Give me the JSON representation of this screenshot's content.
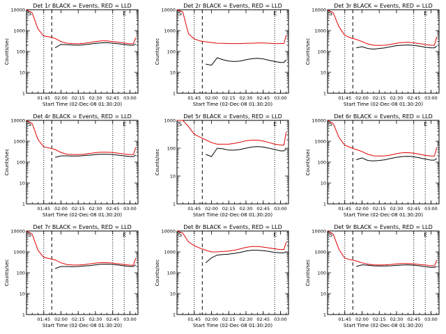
{
  "colors": {
    "events": "#000000",
    "lld": "#e00000",
    "background": "#ffffff"
  },
  "chart_data": [
    {
      "type": "line",
      "title": "Det 1r BLACK = Events, RED = LLD",
      "xlabel": "Start Time (02-Dec-08 01:30:20)",
      "ylabel": "Counts/sec",
      "yscale": "log",
      "ylim": [
        1,
        10000
      ],
      "xlim": [
        "01:30",
        "03:07"
      ],
      "x_ticks": [
        "01:45",
        "02:00",
        "02:15",
        "02:30",
        "02:45",
        "03:00"
      ],
      "y_ticks": [
        "1",
        "10",
        "100",
        "1000",
        "10000"
      ],
      "corner_label_left": "S",
      "corner_label_mid": "E",
      "vlines_dotted": [
        "01:45",
        "02:45",
        "02:55"
      ],
      "vline_dashed": "01:52",
      "event_start": "01:55",
      "x": [
        "01:30",
        "01:35",
        "01:40",
        "01:45",
        "01:50",
        "01:55",
        "02:00",
        "02:05",
        "02:10",
        "02:15",
        "02:20",
        "02:25",
        "02:30",
        "02:35",
        "02:40",
        "02:45",
        "02:50",
        "02:55",
        "03:00",
        "03:03",
        "03:05"
      ],
      "series": [
        {
          "name": "Events",
          "color": "#000000",
          "values": [
            null,
            null,
            null,
            null,
            null,
            150,
            220,
            210,
            205,
            200,
            210,
            225,
            245,
            260,
            265,
            250,
            235,
            215,
            200,
            200,
            230
          ]
        },
        {
          "name": "LLD",
          "color": "#e00000",
          "values": [
            10000,
            7000,
            1200,
            550,
            500,
            420,
            300,
            250,
            240,
            235,
            245,
            270,
            300,
            320,
            320,
            300,
            275,
            255,
            235,
            235,
            450
          ]
        }
      ]
    },
    {
      "type": "line",
      "title": "Det 2r BLACK = Events, RED = LLD",
      "xlabel": "Start Time (02-Dec-08 01:30:20)",
      "ylabel": "Counts/sec",
      "yscale": "log",
      "ylim": [
        1,
        10000
      ],
      "xlim": [
        "01:30",
        "03:07"
      ],
      "x_ticks": [
        "01:45",
        "02:00",
        "02:15",
        "02:30",
        "02:45",
        "03:00"
      ],
      "y_ticks": [
        "1",
        "10",
        "100",
        "1000",
        "10000"
      ],
      "corner_label_left": "S",
      "corner_label_mid": "E",
      "vlines_dotted": [
        "01:45",
        "02:55"
      ],
      "vline_dashed": "01:52",
      "event_start": "01:55",
      "x": [
        "01:30",
        "01:35",
        "01:40",
        "01:45",
        "01:50",
        "01:55",
        "02:00",
        "02:05",
        "02:10",
        "02:15",
        "02:20",
        "02:25",
        "02:30",
        "02:35",
        "02:40",
        "02:45",
        "02:50",
        "02:55",
        "03:00",
        "03:03",
        "03:05"
      ],
      "series": [
        {
          "name": "Events",
          "color": "#000000",
          "values": [
            null,
            null,
            null,
            null,
            null,
            25,
            22,
            50,
            40,
            35,
            33,
            35,
            40,
            45,
            47,
            44,
            38,
            33,
            30,
            30,
            40
          ]
        },
        {
          "name": "LLD",
          "color": "#e00000",
          "values": [
            10000,
            8000,
            700,
            400,
            320,
            290,
            270,
            250,
            245,
            240,
            240,
            240,
            245,
            250,
            255,
            255,
            250,
            240,
            240,
            240,
            600
          ]
        }
      ]
    },
    {
      "type": "line",
      "title": "Det 3r BLACK = Events, RED = LLD",
      "xlabel": "Start Time (02-Dec-08 01:30:20)",
      "ylabel": "Counts/sec",
      "yscale": "log",
      "ylim": [
        1,
        10000
      ],
      "xlim": [
        "01:30",
        "03:07"
      ],
      "x_ticks": [
        "01:45",
        "02:00",
        "02:15",
        "02:30",
        "02:45",
        "03:00"
      ],
      "y_ticks": [
        "1",
        "10",
        "100",
        "1000",
        "10000"
      ],
      "corner_label_left": "S",
      "corner_label_mid": "E",
      "vlines_dotted": [
        "01:45",
        "02:45",
        "02:55"
      ],
      "vline_dashed": "01:52",
      "event_start": "01:55",
      "x": [
        "01:30",
        "01:35",
        "01:40",
        "01:45",
        "01:50",
        "01:55",
        "02:00",
        "02:05",
        "02:10",
        "02:15",
        "02:20",
        "02:25",
        "02:30",
        "02:35",
        "02:40",
        "02:45",
        "02:50",
        "02:55",
        "03:00",
        "03:03",
        "03:05"
      ],
      "series": [
        {
          "name": "Events",
          "color": "#000000",
          "values": [
            null,
            null,
            null,
            null,
            null,
            150,
            170,
            140,
            130,
            140,
            150,
            170,
            190,
            200,
            205,
            195,
            180,
            160,
            150,
            150,
            180
          ]
        },
        {
          "name": "LLD",
          "color": "#e00000",
          "values": [
            10000,
            7000,
            1500,
            600,
            450,
            380,
            300,
            230,
            200,
            195,
            200,
            220,
            250,
            270,
            275,
            260,
            240,
            215,
            200,
            200,
            500
          ]
        }
      ]
    },
    {
      "type": "line",
      "title": "Det 4r BLACK = Events, RED = LLD",
      "xlabel": "Start Time (02-Dec-08 01:30:20)",
      "ylabel": "Counts/sec",
      "yscale": "log",
      "ylim": [
        1,
        10000
      ],
      "xlim": [
        "01:30",
        "03:07"
      ],
      "x_ticks": [
        "01:45",
        "02:00",
        "02:15",
        "02:30",
        "02:45",
        "03:00"
      ],
      "y_ticks": [
        "1",
        "10",
        "100",
        "1000",
        "10000"
      ],
      "corner_label_left": "S",
      "corner_label_mid": "E",
      "vlines_dotted": [
        "01:45",
        "02:45",
        "02:55"
      ],
      "vline_dashed": "01:52",
      "event_start": "01:55",
      "x": [
        "01:30",
        "01:35",
        "01:40",
        "01:45",
        "01:50",
        "01:55",
        "02:00",
        "02:05",
        "02:10",
        "02:15",
        "02:20",
        "02:25",
        "02:30",
        "02:35",
        "02:40",
        "02:45",
        "02:50",
        "02:55",
        "03:00",
        "03:03",
        "03:05"
      ],
      "series": [
        {
          "name": "Events",
          "color": "#000000",
          "values": [
            null,
            null,
            null,
            null,
            null,
            170,
            200,
            200,
            195,
            195,
            205,
            215,
            230,
            240,
            240,
            230,
            215,
            200,
            185,
            185,
            220
          ]
        },
        {
          "name": "LLD",
          "color": "#e00000",
          "values": [
            10000,
            7000,
            1200,
            550,
            470,
            400,
            290,
            240,
            230,
            230,
            240,
            260,
            285,
            300,
            300,
            290,
            265,
            245,
            230,
            230,
            500
          ]
        }
      ]
    },
    {
      "type": "line",
      "title": "Det 5r BLACK = Events, RED = LLD",
      "xlabel": "Start Time (02-Dec-08 01:30:20)",
      "ylabel": "Counts/sec",
      "yscale": "log",
      "ylim": [
        1,
        1000
      ],
      "xlim": [
        "01:30",
        "03:07"
      ],
      "x_ticks": [
        "01:45",
        "02:00",
        "02:15",
        "02:30",
        "02:45",
        "03:00"
      ],
      "y_ticks": [
        "1",
        "10",
        "100",
        "1000"
      ],
      "corner_label_left": "S",
      "corner_label_mid": "E",
      "vlines_dotted": [
        "01:45",
        "02:55"
      ],
      "vline_dashed": "01:52",
      "event_start": "01:55",
      "x": [
        "01:30",
        "01:35",
        "01:40",
        "01:45",
        "01:50",
        "01:55",
        "02:00",
        "02:05",
        "02:10",
        "02:15",
        "02:20",
        "02:25",
        "02:30",
        "02:35",
        "02:40",
        "02:45",
        "02:50",
        "02:55",
        "03:00",
        "03:03",
        "03:05"
      ],
      "series": [
        {
          "name": "Events",
          "color": "#000000",
          "values": [
            null,
            null,
            null,
            null,
            null,
            60,
            50,
            100,
            95,
            85,
            85,
            90,
            100,
            110,
            115,
            110,
            100,
            90,
            80,
            80,
            95
          ]
        },
        {
          "name": "LLD",
          "color": "#e00000",
          "values": [
            1000,
            1000,
            600,
            320,
            250,
            200,
            160,
            140,
            140,
            140,
            150,
            165,
            185,
            195,
            195,
            180,
            160,
            140,
            130,
            130,
            380
          ]
        }
      ]
    },
    {
      "type": "line",
      "title": "Det 6r BLACK = Events, RED = LLD",
      "xlabel": "Start Time (02-Dec-08 01:30:20)",
      "ylabel": "Counts/sec",
      "yscale": "log",
      "ylim": [
        1,
        10000
      ],
      "xlim": [
        "01:30",
        "03:07"
      ],
      "x_ticks": [
        "01:45",
        "02:00",
        "02:15",
        "02:30",
        "02:45",
        "03:00"
      ],
      "y_ticks": [
        "1",
        "10",
        "100",
        "1000",
        "10000"
      ],
      "corner_label_left": "S",
      "corner_label_mid": "E",
      "vlines_dotted": [
        "01:45",
        "02:45",
        "02:55"
      ],
      "vline_dashed": "01:52",
      "event_start": "01:55",
      "x": [
        "01:30",
        "01:35",
        "01:40",
        "01:45",
        "01:50",
        "01:55",
        "02:00",
        "02:05",
        "02:10",
        "02:15",
        "02:20",
        "02:25",
        "02:30",
        "02:35",
        "02:40",
        "02:45",
        "02:50",
        "02:55",
        "03:00",
        "03:03",
        "03:05"
      ],
      "series": [
        {
          "name": "Events",
          "color": "#000000",
          "values": [
            null,
            null,
            null,
            null,
            null,
            130,
            160,
            120,
            115,
            120,
            130,
            150,
            170,
            185,
            190,
            180,
            160,
            140,
            125,
            125,
            150
          ]
        },
        {
          "name": "LLD",
          "color": "#e00000",
          "values": [
            10000,
            7000,
            1500,
            650,
            500,
            400,
            320,
            240,
            200,
            195,
            200,
            220,
            255,
            280,
            285,
            270,
            240,
            210,
            195,
            195,
            500
          ]
        }
      ]
    },
    {
      "type": "line",
      "title": "Det 7r BLACK = Events, RED = LLD",
      "xlabel": "Start Time (02-Dec-08 01:30:20)",
      "ylabel": "Counts/sec",
      "yscale": "log",
      "ylim": [
        1,
        10000
      ],
      "xlim": [
        "01:30",
        "03:07"
      ],
      "x_ticks": [
        "01:45",
        "02:00",
        "02:15",
        "02:30",
        "02:45",
        "03:00"
      ],
      "y_ticks": [
        "1",
        "10",
        "100",
        "1000",
        "10000"
      ],
      "corner_label_left": "S",
      "corner_label_mid": "E",
      "vlines_dotted": [
        "01:45",
        "02:45",
        "02:55"
      ],
      "vline_dashed": "01:52",
      "event_start": "01:55",
      "x": [
        "01:30",
        "01:35",
        "01:40",
        "01:45",
        "01:50",
        "01:55",
        "02:00",
        "02:05",
        "02:10",
        "02:15",
        "02:20",
        "02:25",
        "02:30",
        "02:35",
        "02:40",
        "02:45",
        "02:50",
        "02:55",
        "03:00",
        "03:03",
        "03:05"
      ],
      "series": [
        {
          "name": "Events",
          "color": "#000000",
          "values": [
            null,
            null,
            null,
            null,
            null,
            160,
            200,
            200,
            195,
            200,
            210,
            220,
            240,
            255,
            260,
            250,
            235,
            215,
            200,
            200,
            240
          ]
        },
        {
          "name": "LLD",
          "color": "#e00000",
          "values": [
            10000,
            7000,
            1200,
            550,
            480,
            410,
            300,
            250,
            235,
            235,
            245,
            265,
            290,
            305,
            305,
            290,
            270,
            250,
            230,
            230,
            500
          ]
        }
      ]
    },
    {
      "type": "line",
      "title": "Det 8r BLACK = Events, RED = LLD",
      "xlabel": "Start Time (02-Dec-08 01:30:20)",
      "ylabel": "Counts/sec",
      "yscale": "log",
      "ylim": [
        1,
        10000
      ],
      "xlim": [
        "01:30",
        "03:07"
      ],
      "x_ticks": [
        "01:45",
        "02:00",
        "02:15",
        "02:30",
        "02:45",
        "03:00"
      ],
      "y_ticks": [
        "1",
        "10",
        "100",
        "1000",
        "10000"
      ],
      "corner_label_left": "S",
      "corner_label_mid": "E",
      "vlines_dotted": [
        "01:45",
        "02:55"
      ],
      "vline_dashed": "01:52",
      "event_start": "01:55",
      "x": [
        "01:30",
        "01:35",
        "01:40",
        "01:45",
        "01:50",
        "01:55",
        "02:00",
        "02:05",
        "02:10",
        "02:15",
        "02:20",
        "02:25",
        "02:30",
        "02:35",
        "02:40",
        "02:45",
        "02:50",
        "02:55",
        "03:00",
        "03:03",
        "03:05"
      ],
      "series": [
        {
          "name": "Events",
          "color": "#000000",
          "values": [
            null,
            null,
            null,
            null,
            null,
            300,
            520,
            700,
            750,
            780,
            850,
            950,
            1100,
            1200,
            1200,
            1150,
            1050,
            950,
            900,
            900,
            1000
          ]
        },
        {
          "name": "LLD",
          "color": "#e00000",
          "values": [
            10000,
            8000,
            3000,
            2000,
            1500,
            1200,
            1000,
            1000,
            1050,
            1100,
            1200,
            1400,
            1650,
            1800,
            1800,
            1700,
            1550,
            1400,
            1300,
            1300,
            3000
          ]
        }
      ]
    },
    {
      "type": "line",
      "title": "Det 9r BLACK = Events, RED = LLD",
      "xlabel": "Start Time (02-Dec-08 01:30:20)",
      "ylabel": "Counts/sec",
      "yscale": "log",
      "ylim": [
        1,
        10000
      ],
      "xlim": [
        "01:30",
        "03:07"
      ],
      "x_ticks": [
        "01:45",
        "02:00",
        "02:15",
        "02:30",
        "02:45",
        "03:00"
      ],
      "y_ticks": [
        "1",
        "10",
        "100",
        "1000",
        "10000"
      ],
      "corner_label_left": "S",
      "corner_label_mid": "E",
      "vlines_dotted": [
        "01:45",
        "02:45",
        "02:55"
      ],
      "vline_dashed": "01:52",
      "event_start": "01:55",
      "x": [
        "01:30",
        "01:35",
        "01:40",
        "01:45",
        "01:50",
        "01:55",
        "02:00",
        "02:05",
        "02:10",
        "02:15",
        "02:20",
        "02:25",
        "02:30",
        "02:35",
        "02:40",
        "02:45",
        "02:50",
        "02:55",
        "03:00",
        "03:03",
        "03:05"
      ],
      "series": [
        {
          "name": "Events",
          "color": "#000000",
          "values": [
            null,
            null,
            null,
            null,
            null,
            200,
            240,
            230,
            215,
            210,
            210,
            215,
            225,
            235,
            240,
            230,
            215,
            195,
            180,
            180,
            200
          ]
        },
        {
          "name": "LLD",
          "color": "#e00000",
          "values": [
            10000,
            7000,
            1300,
            500,
            420,
            370,
            300,
            260,
            240,
            235,
            240,
            250,
            265,
            275,
            275,
            265,
            250,
            235,
            215,
            215,
            400
          ]
        }
      ]
    }
  ]
}
